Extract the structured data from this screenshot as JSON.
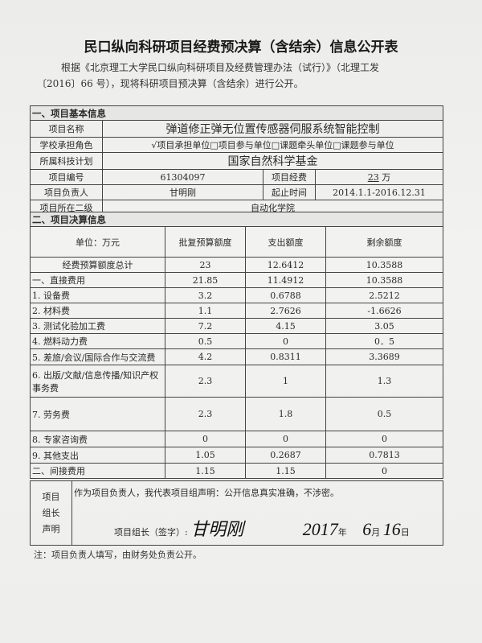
{
  "title": "民口纵向科研项目经费预决算（含结余）信息公开表",
  "intro": {
    "line1": "根据《北京理工大学民口纵向科研项目及经费管理办法（试行）》（北理工发",
    "line2": "〔2016〕66 号），现将科研项目预决算（含结余）进行公开。"
  },
  "section1": {
    "header": "一、项目基本信息",
    "name_label": "项目名称",
    "name": "弹道修正弹无位置传感器伺服系统智能控制",
    "role_label": "学校承担角色",
    "role": "√项目承担单位□项目参与单位□课题牵头单位□课题参与单位",
    "plan_label": "所属科技计划",
    "plan": "国家自然科学基金",
    "number_label": "项目编号",
    "number": "61304097",
    "funding_label": "项目经费",
    "funding": "23",
    "funding_unit": "万",
    "leader_label": "项目负责人",
    "leader": "甘明刚",
    "period_label": "起止时间",
    "period": "2014.1.1-2016.12.31",
    "dept_label": "项目所在二级",
    "dept": "自动化学院"
  },
  "section2": {
    "header": "二、项目决算信息",
    "columns": [
      "单位：万元",
      "批复预算额度",
      "支出额度",
      "剩余额度"
    ],
    "rows": [
      [
        "经费预算额度总计",
        "23",
        "12.6412",
        "10.3588"
      ],
      [
        "一、直接费用",
        "21.85",
        "11.4912",
        "10.3588"
      ],
      [
        "1. 设备费",
        "3.2",
        "0.6788",
        "2.5212"
      ],
      [
        "2. 材料费",
        "1.1",
        "2.7626",
        "-1.6626"
      ],
      [
        "3. 测试化验加工费",
        "7.2",
        "4.15",
        "3.05"
      ],
      [
        "4. 燃料动力费",
        "0.5",
        "0",
        "0．5"
      ],
      [
        "5. 差旅/会议/国际合作与交流费",
        "4.2",
        "0.8311",
        "3.3689"
      ],
      [
        "6. 出版/文献/信息传播/知识产权事务费",
        "2.3",
        "1",
        "1.3"
      ],
      [
        "7. 劳务费",
        "2.3",
        "1.8",
        "0.5"
      ],
      [
        "8. 专家咨询费",
        "0",
        "0",
        "0"
      ],
      [
        "9. 其他支出",
        "1.05",
        "0.2687",
        "0.7813"
      ],
      [
        "二、间接费用",
        "1.15",
        "1.15",
        "0"
      ]
    ]
  },
  "statement": {
    "label": "项目组长声明",
    "text": "作为项目负责人，我代表项目组声明：公开信息真实准确，不涉密。",
    "sign_label": "项目组长（签字）:",
    "signature": "甘明刚",
    "year": "2017",
    "year_unit": "年",
    "month": "6",
    "month_unit": "月",
    "day": "16",
    "day_unit": "日"
  },
  "note": "注：项目负责人填写，由财务处负责公开。"
}
